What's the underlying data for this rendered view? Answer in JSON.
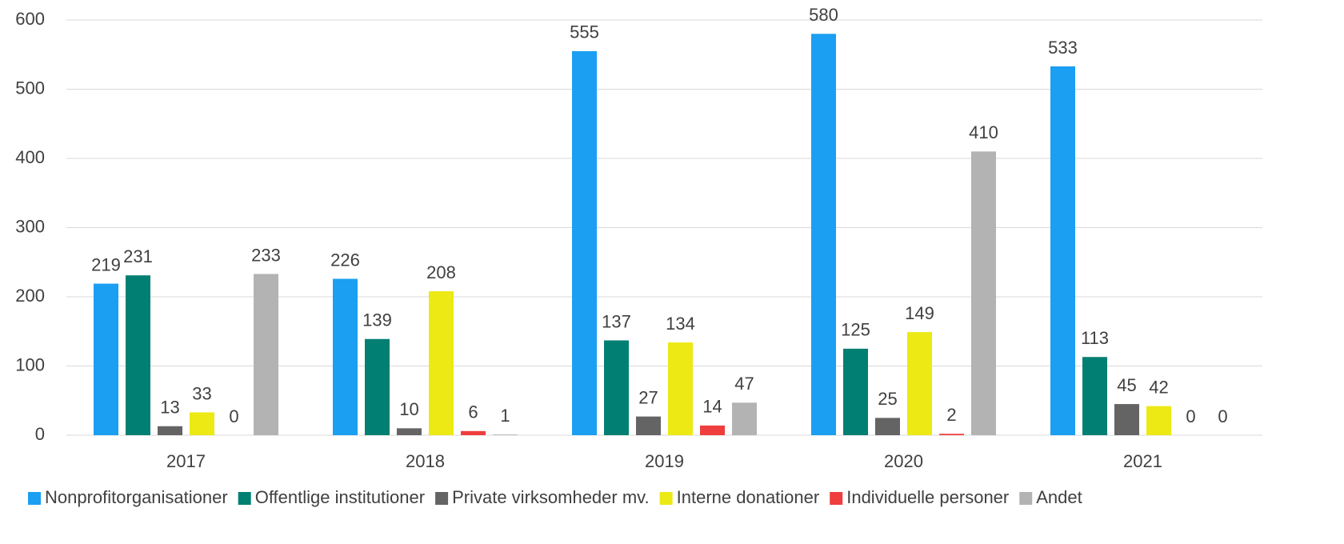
{
  "chart_data": {
    "type": "bar",
    "categories": [
      "2017",
      "2018",
      "2019",
      "2020",
      "2021"
    ],
    "series": [
      {
        "name": "Nonprofitorganisationer",
        "color": "#1a9ff2",
        "values": [
          219,
          226,
          555,
          580,
          533
        ]
      },
      {
        "name": "Offentlige institutioner",
        "color": "#007f72",
        "values": [
          231,
          139,
          137,
          125,
          113
        ]
      },
      {
        "name": "Private virksomheder mv.",
        "color": "#646464",
        "values": [
          13,
          10,
          27,
          25,
          45
        ]
      },
      {
        "name": "Interne donationer",
        "color": "#ece914",
        "values": [
          33,
          208,
          134,
          149,
          42
        ]
      },
      {
        "name": "Individuelle personer",
        "color": "#ef3e3e",
        "values": [
          0,
          6,
          14,
          2,
          0
        ]
      },
      {
        "name": "Andet",
        "color": "#b3b3b3",
        "values": [
          233,
          1,
          47,
          410,
          0
        ]
      }
    ],
    "ylim": [
      0,
      600
    ],
    "yticks": [
      0,
      100,
      200,
      300,
      400,
      500,
      600
    ],
    "grid": true,
    "legend": "bottom"
  }
}
